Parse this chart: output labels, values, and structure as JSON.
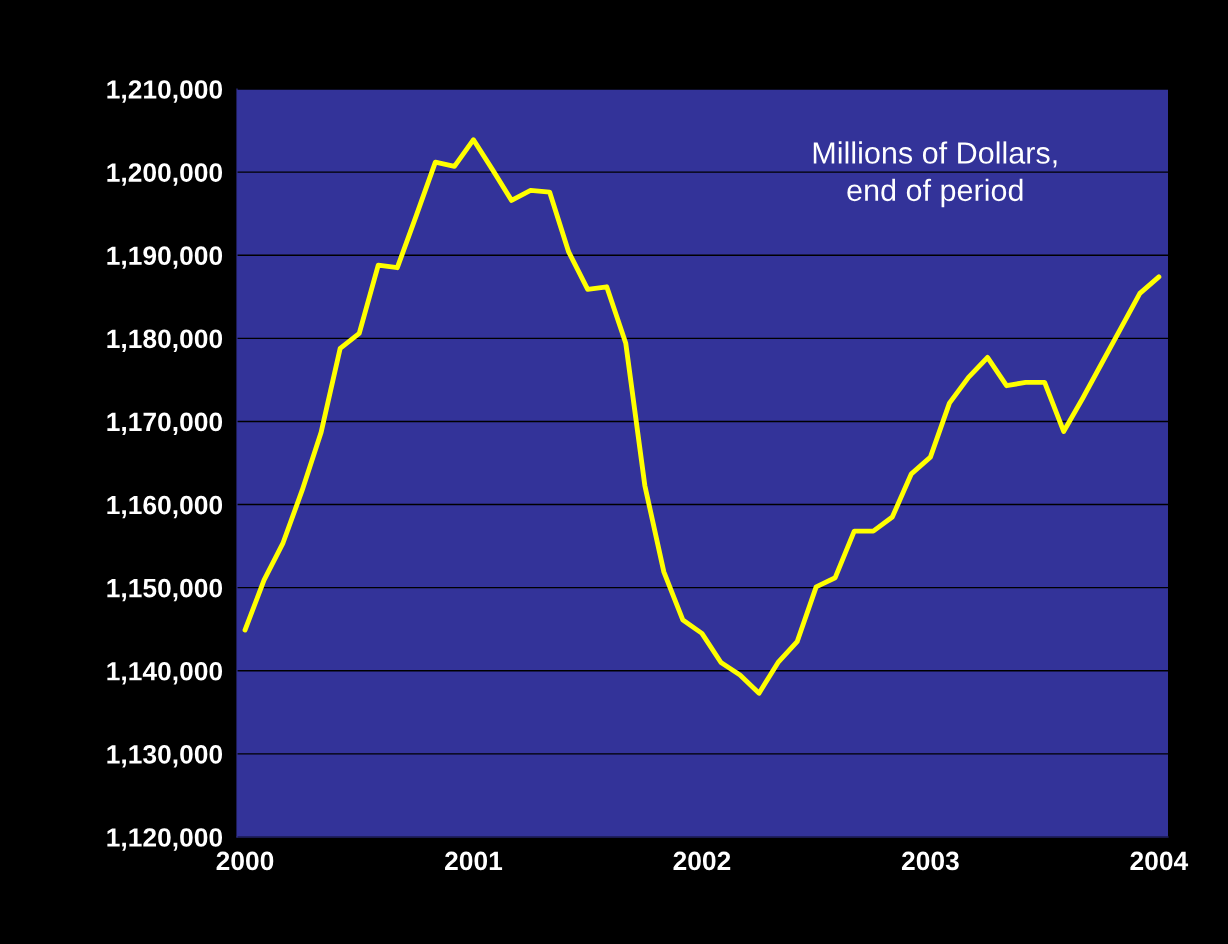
{
  "chart_data": {
    "type": "line",
    "annotations": [
      "Millions of Dollars,\nend of period"
    ],
    "x": [
      2000,
      2000.0833,
      2000.1667,
      2000.25,
      2000.3333,
      2000.4167,
      2000.5,
      2000.5833,
      2000.6667,
      2000.75,
      2000.8333,
      2000.9167,
      2001,
      2001.0833,
      2001.1667,
      2001.25,
      2001.3333,
      2001.4167,
      2001.5,
      2001.5833,
      2001.6667,
      2001.75,
      2001.8333,
      2001.9167,
      2002,
      2002.0833,
      2002.1667,
      2002.25,
      2002.3333,
      2002.4167,
      2002.5,
      2002.5833,
      2002.6667,
      2002.75,
      2002.8333,
      2002.9167,
      2003,
      2003.0833,
      2003.1667,
      2003.25,
      2003.3333,
      2003.4167,
      2003.5,
      2003.5833,
      2003.6667,
      2003.75,
      2003.8333,
      2003.9167,
      2004
    ],
    "series": [
      {
        "color": "#ffff00",
        "values": [
          1144900,
          1150900,
          1155400,
          1161700,
          1168700,
          1178800,
          1180600,
          1188800,
          1188500,
          1194800,
          1201200,
          1200700,
          1203900,
          1200300,
          1196600,
          1197800,
          1197600,
          1190400,
          1185900,
          1186200,
          1179400,
          1162300,
          1151900,
          1146100,
          1144500,
          1141000,
          1139500,
          1137300,
          1141000,
          1143500,
          1150100,
          1151200,
          1156800,
          1156800,
          1158500,
          1163700,
          1165700,
          1172200,
          1175300,
          1177700,
          1174300,
          1174700,
          1174700,
          1168800,
          1172800,
          1177000,
          1181200,
          1185400,
          1187400
        ]
      }
    ],
    "xlim": [
      1999.965,
      2004.04
    ],
    "ylim": [
      1120000,
      1210000
    ],
    "xticks": [
      2000,
      2001,
      2002,
      2003,
      2004
    ],
    "yticks": [
      {
        "value": 1120000,
        "label": "1,120,000"
      },
      {
        "value": 1130000,
        "label": "1,130,000"
      },
      {
        "value": 1140000,
        "label": "1,140,000"
      },
      {
        "value": 1150000,
        "label": "1,150,000"
      },
      {
        "value": 1160000,
        "label": "1,160,000"
      },
      {
        "value": 1170000,
        "label": "1,170,000"
      },
      {
        "value": 1180000,
        "label": "1,180,000"
      },
      {
        "value": 1190000,
        "label": "1,190,000"
      },
      {
        "value": 1200000,
        "label": "1,200,000"
      },
      {
        "value": 1210000,
        "label": "1,210,000"
      }
    ],
    "grid": "y",
    "marker": "none",
    "line_style": "solid",
    "legend": false
  }
}
